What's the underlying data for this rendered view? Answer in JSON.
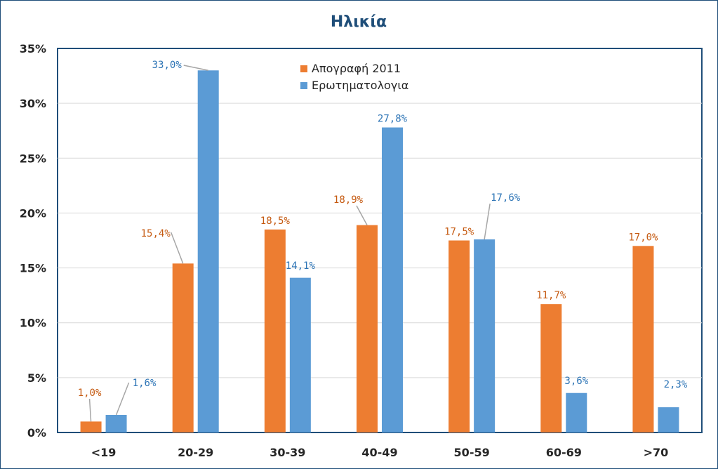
{
  "chart_data": {
    "type": "bar",
    "title": "Ηλικία",
    "xlabel": "",
    "ylabel": "",
    "categories": [
      "<19",
      "20-29",
      "30-39",
      "40-49",
      "50-59",
      "60-69",
      ">70"
    ],
    "series": [
      {
        "name": "Απογραφή 2011",
        "color": "#ed7d31",
        "values": [
          1.0,
          15.4,
          18.5,
          18.9,
          17.5,
          11.7,
          17.0
        ],
        "labels": [
          "1,0%",
          "15,4%",
          "18,5%",
          "18,9%",
          "17,5%",
          "11,7%",
          "17,0%"
        ]
      },
      {
        "name": "Ερωτηματολογια",
        "color": "#5b9bd5",
        "values": [
          1.6,
          33.0,
          14.1,
          27.8,
          17.6,
          3.6,
          2.3
        ],
        "labels": [
          "1,6%",
          "33,0%",
          "14,1%",
          "27,8%",
          "17,6%",
          "3,6%",
          "2,3%"
        ]
      }
    ],
    "ylim": [
      0,
      35
    ],
    "yticks": [
      0,
      5,
      10,
      15,
      20,
      25,
      30,
      35
    ],
    "ytick_labels": [
      "0%",
      "5%",
      "10%",
      "15%",
      "20%",
      "25%",
      "30%",
      "35%"
    ],
    "grid": true,
    "legend": "top-center"
  }
}
